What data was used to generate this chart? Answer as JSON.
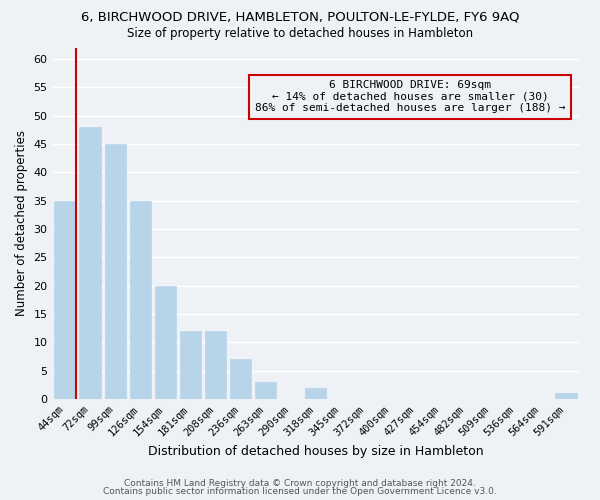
{
  "title": "6, BIRCHWOOD DRIVE, HAMBLETON, POULTON-LE-FYLDE, FY6 9AQ",
  "subtitle": "Size of property relative to detached houses in Hambleton",
  "xlabel": "Distribution of detached houses by size in Hambleton",
  "ylabel": "Number of detached properties",
  "bar_labels": [
    "44sqm",
    "72sqm",
    "99sqm",
    "126sqm",
    "154sqm",
    "181sqm",
    "208sqm",
    "236sqm",
    "263sqm",
    "290sqm",
    "318sqm",
    "345sqm",
    "372sqm",
    "400sqm",
    "427sqm",
    "454sqm",
    "482sqm",
    "509sqm",
    "536sqm",
    "564sqm",
    "591sqm"
  ],
  "bar_values": [
    35,
    48,
    45,
    35,
    20,
    12,
    12,
    7,
    3,
    0,
    2,
    0,
    0,
    0,
    0,
    0,
    0,
    0,
    0,
    0,
    1
  ],
  "bar_color": "#b8d4e8",
  "ylim": [
    0,
    62
  ],
  "yticks": [
    0,
    5,
    10,
    15,
    20,
    25,
    30,
    35,
    40,
    45,
    50,
    55,
    60
  ],
  "annotation_title": "6 BIRCHWOOD DRIVE: 69sqm",
  "annotation_line1": "← 14% of detached houses are smaller (30)",
  "annotation_line2": "86% of semi-detached houses are larger (188) →",
  "box_color": "#cc0000",
  "footer1": "Contains HM Land Registry data © Crown copyright and database right 2024.",
  "footer2": "Contains public sector information licensed under the Open Government Licence v3.0.",
  "background_color": "#eef2f7",
  "grid_color": "#ffffff",
  "vline_bar_index": 1
}
